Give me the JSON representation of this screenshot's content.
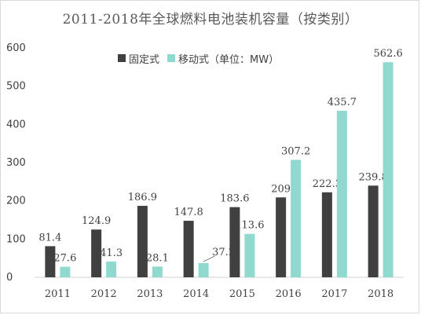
{
  "chart_data": {
    "type": "bar",
    "title": "2011-2018年全球燃料电池装机容量（按类别）",
    "categories": [
      "2011",
      "2012",
      "2013",
      "2014",
      "2015",
      "2016",
      "2017",
      "2018"
    ],
    "series": [
      {
        "name": "固定式",
        "values": [
          81.4,
          124.9,
          186.9,
          147.8,
          183.6,
          209,
          222.3,
          239.8
        ],
        "labels": [
          "81.4",
          "124.9",
          "186.9",
          "147.8",
          "183.6",
          "209",
          "222.3",
          "239.8"
        ],
        "color": "#404040"
      },
      {
        "name": "移动式（单位：MW）",
        "values": [
          27.6,
          41.3,
          28.1,
          37.2,
          113.6,
          307.2,
          435.7,
          562.6
        ],
        "labels": [
          "27.6",
          "41.3",
          "28.1",
          "37.2",
          "113.6",
          "307.2",
          "435.7",
          "562.6"
        ],
        "color": "#8fd9cf"
      }
    ],
    "yticks": [
      "0",
      "100",
      "200",
      "300",
      "400",
      "500",
      "600"
    ],
    "ylim": [
      0,
      600
    ],
    "legend_position": "top-center",
    "grid": false
  }
}
